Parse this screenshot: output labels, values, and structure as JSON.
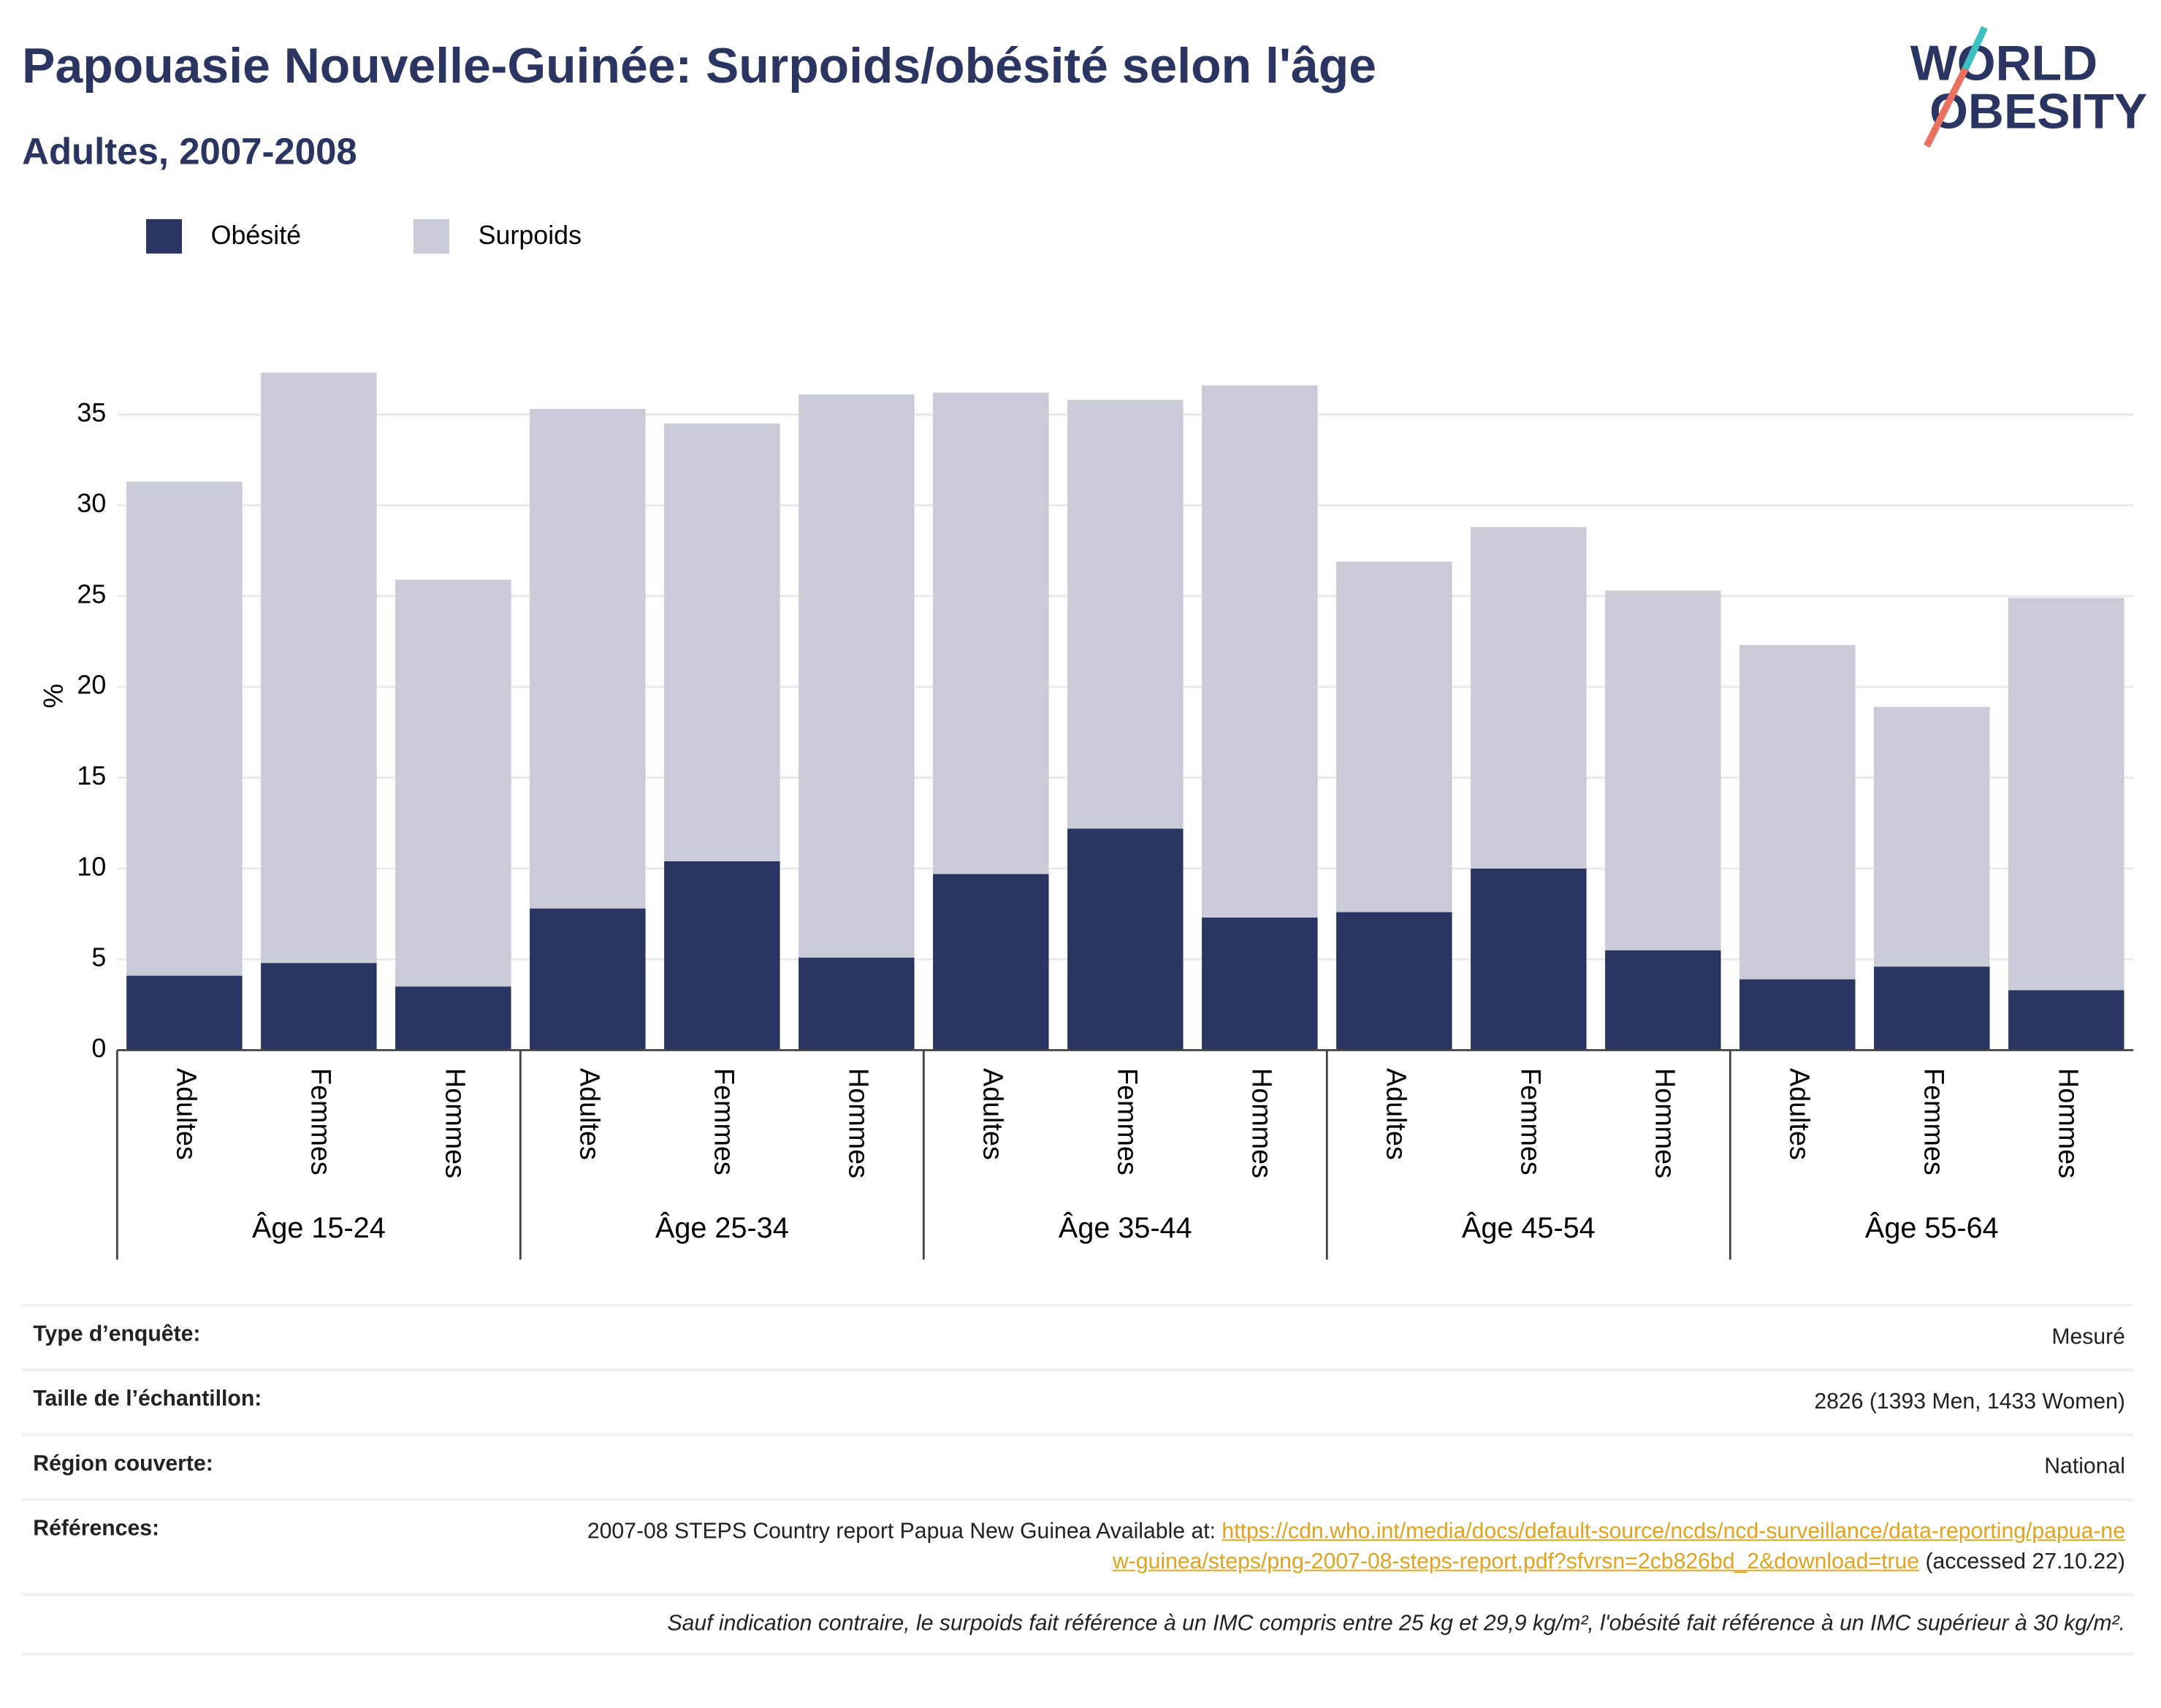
{
  "chart_data": {
    "type": "stacked-bar",
    "title": "Papouasie Nouvelle-Guinée: Surpoids/obésité selon l'âge",
    "subtitle": "Adultes, 2007-2008",
    "y_label": "%",
    "groups": [
      "Âge 15-24",
      "Âge 25-34",
      "Âge 35-44",
      "Âge 45-54",
      "Âge 55-64"
    ],
    "categories": [
      "Adultes",
      "Femmes",
      "Hommes",
      "Adultes",
      "Femmes",
      "Hommes",
      "Adultes",
      "Femmes",
      "Hommes",
      "Adultes",
      "Femmes",
      "Hommes",
      "Adultes",
      "Femmes",
      "Hommes"
    ],
    "series": [
      {
        "name": "Obésité",
        "color": "#2a3561",
        "values": [
          4.1,
          4.8,
          3.5,
          7.8,
          10.4,
          5.1,
          9.7,
          12.2,
          7.3,
          7.6,
          10.0,
          5.5,
          3.9,
          4.6,
          3.3
        ]
      },
      {
        "name": "Surpoids",
        "color": "#c9cbd7",
        "values": [
          27.2,
          32.5,
          22.4,
          27.5,
          24.1,
          31.0,
          26.5,
          23.6,
          29.3,
          19.3,
          18.8,
          19.8,
          18.4,
          14.3,
          21.6
        ]
      }
    ],
    "ylim": [
      0,
      39
    ],
    "yticks": [
      0,
      5,
      10,
      15,
      20,
      25,
      30,
      35
    ],
    "grid": true,
    "legend": "top-left"
  },
  "logo": {
    "line1": "WORLD",
    "line2": "OBESITY"
  },
  "info": {
    "rows": [
      [
        "Type d’enquête:",
        "Mesuré"
      ],
      [
        "Taille de l’échantillon:",
        "2826 (1393 Men, 1433 Women)"
      ],
      [
        "Région couverte:",
        "National"
      ]
    ],
    "references": {
      "label": "Références:",
      "text": "2007-08 STEPS Country report Papua New Guinea Available at: ",
      "link": "https://cdn.who.int/media/docs/default-source/ncds/ncd-surveillance/data-reporting/papua-new-guinea/steps/png-2007-08-steps-report.pdf?sfvrsn=2cb826bd_2&download=true",
      "after": " (accessed 27.10.22)"
    },
    "note": "Sauf indication contraire, le surpoids fait référence à un IMC compris entre 25 kg et 29,9 kg/m², l'obésité fait référence à un IMC supérieur à 30 kg/m²."
  }
}
